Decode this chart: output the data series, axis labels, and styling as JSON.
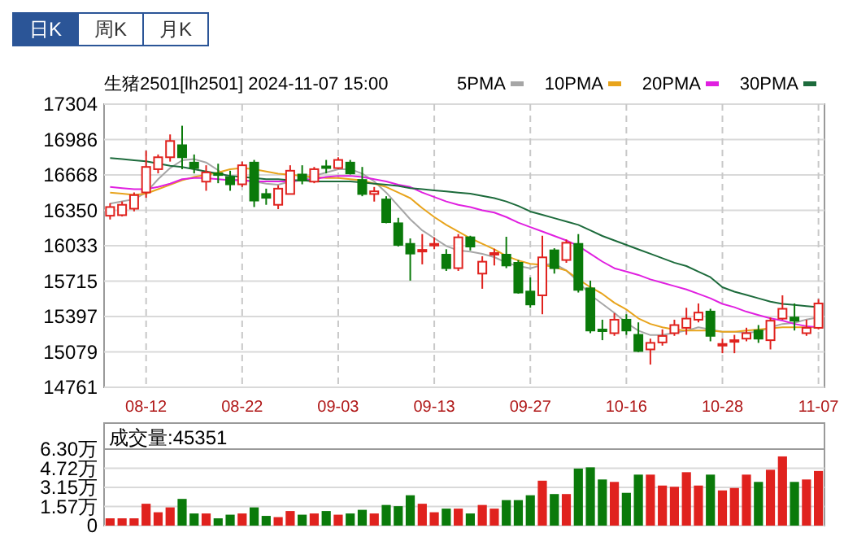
{
  "chart_data": [
    {
      "type": "candlestick",
      "title": "生猪2501[lh2501] 2024-11-07 15:00",
      "annotations": [
        "日K",
        "周K",
        "月K"
      ],
      "categories": [
        null,
        null,
        null,
        "08-12",
        null,
        null,
        null,
        null,
        null,
        null,
        null,
        "08-22",
        null,
        null,
        null,
        null,
        null,
        null,
        null,
        "09-03",
        null,
        null,
        null,
        null,
        null,
        null,
        null,
        "09-13",
        null,
        null,
        null,
        null,
        null,
        null,
        null,
        "09-27",
        null,
        null,
        null,
        null,
        null,
        null,
        null,
        "10-16",
        null,
        null,
        null,
        null,
        null,
        null,
        null,
        "10-28",
        null,
        null,
        null,
        null,
        null,
        null,
        null,
        "11-07"
      ],
      "ohlc": [
        [
          16302,
          16414,
          16268,
          16380
        ],
        [
          16307,
          16430,
          16295,
          16400
        ],
        [
          16365,
          16511,
          16341,
          16487
        ],
        [
          16511,
          16886,
          16463,
          16740
        ],
        [
          16720,
          16852,
          16682,
          16827
        ],
        [
          16827,
          17032,
          16788,
          16973
        ],
        [
          16935,
          17110,
          16720,
          16827
        ],
        [
          16779,
          16852,
          16682,
          16730
        ],
        [
          16608,
          16755,
          16526,
          16691
        ],
        [
          16682,
          16769,
          16594,
          16672
        ],
        [
          16648,
          16706,
          16526,
          16584
        ],
        [
          16584,
          16788,
          16560,
          16755
        ],
        [
          16779,
          16803,
          16380,
          16438
        ],
        [
          16497,
          16545,
          16400,
          16463
        ],
        [
          16400,
          16575,
          16361,
          16545
        ],
        [
          16497,
          16755,
          16497,
          16706
        ],
        [
          16672,
          16755,
          16584,
          16618
        ],
        [
          16608,
          16740,
          16594,
          16720
        ],
        [
          16745,
          16803,
          16682,
          16735
        ],
        [
          16730,
          16827,
          16720,
          16803
        ],
        [
          16779,
          16803,
          16672,
          16682
        ],
        [
          16623,
          16740,
          16477,
          16497
        ],
        [
          16497,
          16560,
          16429,
          16521
        ],
        [
          16448,
          16477,
          16234,
          16244
        ],
        [
          16234,
          16283,
          16025,
          16040
        ],
        [
          16049,
          16098,
          15719,
          15962
        ],
        [
          15985,
          16137,
          15865,
          15995
        ],
        [
          16040,
          16108,
          16001,
          16049
        ],
        [
          15952,
          16001,
          15806,
          15831
        ],
        [
          15831,
          16137,
          15806,
          16108
        ],
        [
          16108,
          16122,
          15990,
          16025
        ],
        [
          15782,
          15938,
          15646,
          15889
        ],
        [
          15957,
          16005,
          15855,
          15967
        ],
        [
          15952,
          16113,
          15831,
          15855
        ],
        [
          15879,
          15904,
          15602,
          15612
        ],
        [
          15621,
          15748,
          15475,
          15505
        ],
        [
          15587,
          16122,
          15417,
          15928
        ],
        [
          15991,
          16010,
          15782,
          15831
        ],
        [
          15904,
          16088,
          15879,
          16059
        ],
        [
          16049,
          16137,
          15612,
          15636
        ],
        [
          15650,
          15719,
          15247,
          15271
        ],
        [
          15280,
          15368,
          15184,
          15271
        ],
        [
          15247,
          15427,
          15223,
          15368
        ],
        [
          15368,
          15417,
          15232,
          15271
        ],
        [
          15232,
          15344,
          15077,
          15087
        ],
        [
          15101,
          15198,
          14965,
          15160
        ],
        [
          15164,
          15281,
          15135,
          15222
        ],
        [
          15247,
          15368,
          15223,
          15320
        ],
        [
          15295,
          15475,
          15232,
          15378
        ],
        [
          15368,
          15514,
          15344,
          15432
        ],
        [
          15441,
          15466,
          15174,
          15223
        ],
        [
          15140,
          15198,
          15067,
          15150
        ],
        [
          15174,
          15232,
          15067,
          15184
        ],
        [
          15198,
          15296,
          15174,
          15247
        ],
        [
          15271,
          15320,
          15160,
          15198
        ],
        [
          15184,
          15388,
          15101,
          15359
        ],
        [
          15378,
          15587,
          15368,
          15466
        ],
        [
          15388,
          15514,
          15271,
          15359
        ],
        [
          15247,
          15368,
          15223,
          15295
        ],
        [
          15295,
          15553,
          15281,
          15514
        ]
      ],
      "colors": [
        "#e0221e",
        "#e0221e",
        "#e0221e",
        "#e0221e",
        "#e0221e",
        "#e0221e",
        "#0a7a0a",
        "#0a7a0a",
        "#e0221e",
        "#0a7a0a",
        "#0a7a0a",
        "#e0221e",
        "#0a7a0a",
        "#0a7a0a",
        "#e0221e",
        "#e0221e",
        "#0a7a0a",
        "#e0221e",
        "#0a7a0a",
        "#e0221e",
        "#0a7a0a",
        "#0a7a0a",
        "#e0221e",
        "#0a7a0a",
        "#0a7a0a",
        "#0a7a0a",
        "#e0221e",
        "#e0221e",
        "#0a7a0a",
        "#e0221e",
        "#0a7a0a",
        "#e0221e",
        "#e0221e",
        "#0a7a0a",
        "#0a7a0a",
        "#0a7a0a",
        "#e0221e",
        "#0a7a0a",
        "#e0221e",
        "#0a7a0a",
        "#0a7a0a",
        "#0a7a0a",
        "#e0221e",
        "#0a7a0a",
        "#0a7a0a",
        "#e0221e",
        "#e0221e",
        "#e0221e",
        "#e0221e",
        "#e0221e",
        "#0a7a0a",
        "#e0221e",
        "#e0221e",
        "#e0221e",
        "#0a7a0a",
        "#e0221e",
        "#e0221e",
        "#0a7a0a",
        "#e0221e",
        "#e0221e"
      ],
      "ylim": [
        14761,
        17304
      ],
      "yticks": [
        14761,
        15079,
        15397,
        15715,
        16033,
        16350,
        16668,
        16986,
        17304
      ],
      "grid": true,
      "legend": "top right",
      "series": [
        {
          "name": "5PMA",
          "type": "line",
          "color": "#a6a6a6",
          "values": [
            16410,
            16430,
            16450,
            16510,
            16630,
            16730,
            16800,
            16810,
            16780,
            16710,
            16630,
            16620,
            16610,
            16590,
            16580,
            16610,
            16620,
            16660,
            16690,
            16720,
            16720,
            16680,
            16610,
            16510,
            16390,
            16270,
            16170,
            16100,
            16030,
            15990,
            15980,
            15960,
            15930,
            15880,
            15850,
            15830,
            15860,
            15870,
            15810,
            15710,
            15590,
            15510,
            15430,
            15340,
            15270,
            15230,
            15230,
            15250,
            15270,
            15300,
            15280,
            15260,
            15260,
            15250,
            15260,
            15300,
            15330,
            15340,
            15370,
            15390
          ]
        },
        {
          "name": "10PMA",
          "type": "line",
          "color": "#e8a41c",
          "values": [
            16510,
            16500,
            16490,
            16500,
            16540,
            16580,
            16620,
            16650,
            16670,
            16690,
            16720,
            16730,
            16720,
            16700,
            16680,
            16670,
            16660,
            16650,
            16640,
            16640,
            16630,
            16620,
            16590,
            16560,
            16510,
            16460,
            16370,
            16290,
            16220,
            16160,
            16100,
            16050,
            16000,
            15940,
            15900,
            15870,
            15860,
            15840,
            15810,
            15730,
            15660,
            15600,
            15520,
            15460,
            15380,
            15330,
            15300,
            15280,
            15270,
            15270,
            15270,
            15260,
            15260,
            15270,
            15280,
            15290,
            15300,
            15300,
            15300,
            15300
          ]
        },
        {
          "name": "20PMA",
          "type": "line",
          "color": "#e020e0",
          "values": [
            16560,
            16550,
            16540,
            16540,
            16560,
            16590,
            16630,
            16640,
            16640,
            16630,
            16620,
            16620,
            16610,
            16610,
            16610,
            16610,
            16620,
            16630,
            16650,
            16660,
            16660,
            16650,
            16630,
            16610,
            16580,
            16560,
            16510,
            16470,
            16430,
            16400,
            16380,
            16350,
            16330,
            16290,
            16240,
            16200,
            16160,
            16120,
            16080,
            16030,
            15960,
            15890,
            15830,
            15800,
            15770,
            15730,
            15700,
            15670,
            15640,
            15600,
            15560,
            15510,
            15480,
            15440,
            15410,
            15380,
            15360,
            15330,
            15310,
            15300
          ]
        },
        {
          "name": "30PMA",
          "type": "line",
          "color": "#1d6b3c",
          "values": [
            16820,
            16810,
            16800,
            16790,
            16770,
            16750,
            16740,
            16720,
            16700,
            16680,
            16660,
            16650,
            16640,
            16630,
            16630,
            16620,
            16620,
            16610,
            16610,
            16610,
            16610,
            16600,
            16590,
            16580,
            16570,
            16550,
            16540,
            16530,
            16520,
            16510,
            16500,
            16480,
            16460,
            16430,
            16390,
            16340,
            16310,
            16280,
            16250,
            16220,
            16170,
            16120,
            16080,
            16040,
            16000,
            15960,
            15920,
            15880,
            15850,
            15800,
            15750,
            15660,
            15620,
            15590,
            15560,
            15530,
            15510,
            15500,
            15490,
            15480
          ]
        }
      ]
    },
    {
      "type": "bar",
      "title": "成交量:45351",
      "tick_labels": "y",
      "grid": "y",
      "categories": [
        null,
        null,
        null,
        null,
        null,
        null,
        null,
        null,
        null,
        null,
        null,
        null,
        null,
        null,
        null,
        null,
        null,
        null,
        null,
        null,
        null,
        null,
        null,
        null,
        null,
        null,
        null,
        null,
        null,
        null,
        null,
        null,
        null,
        null,
        null,
        null,
        null,
        null,
        null,
        null,
        null,
        null,
        null,
        null,
        null,
        null,
        null,
        null,
        null,
        null,
        null,
        null,
        null,
        null,
        null,
        null,
        null,
        null,
        null,
        null
      ],
      "values": [
        0.6,
        0.6,
        0.6,
        1.8,
        1.1,
        1.5,
        2.2,
        1,
        1,
        0.6,
        0.9,
        1,
        1.5,
        0.8,
        0.7,
        1.2,
        0.9,
        1,
        1.2,
        0.9,
        1,
        1.3,
        1,
        1.7,
        1.6,
        2.5,
        1.8,
        1.1,
        1.4,
        1.4,
        1,
        1.7,
        1.4,
        2.1,
        2.1,
        2.5,
        3.7,
        2.6,
        2.6,
        4.7,
        4.8,
        3.8,
        3.6,
        2.7,
        4.2,
        4.2,
        3.3,
        3.2,
        4.4,
        3.3,
        4.2,
        2.9,
        3.1,
        4.2,
        3.6,
        4.6,
        5.7,
        3.6,
        3.8,
        4.5
      ],
      "colors": [
        "#e0221e",
        "#e0221e",
        "#e0221e",
        "#e0221e",
        "#e0221e",
        "#e0221e",
        "#0a7a0a",
        "#0a7a0a",
        "#e0221e",
        "#0a7a0a",
        "#0a7a0a",
        "#e0221e",
        "#0a7a0a",
        "#0a7a0a",
        "#e0221e",
        "#e0221e",
        "#0a7a0a",
        "#e0221e",
        "#0a7a0a",
        "#e0221e",
        "#0a7a0a",
        "#0a7a0a",
        "#e0221e",
        "#0a7a0a",
        "#0a7a0a",
        "#0a7a0a",
        "#e0221e",
        "#e0221e",
        "#0a7a0a",
        "#e0221e",
        "#0a7a0a",
        "#e0221e",
        "#e0221e",
        "#0a7a0a",
        "#0a7a0a",
        "#0a7a0a",
        "#e0221e",
        "#0a7a0a",
        "#e0221e",
        "#0a7a0a",
        "#0a7a0a",
        "#0a7a0a",
        "#e0221e",
        "#0a7a0a",
        "#0a7a0a",
        "#e0221e",
        "#e0221e",
        "#e0221e",
        "#e0221e",
        "#e0221e",
        "#0a7a0a",
        "#e0221e",
        "#e0221e",
        "#e0221e",
        "#0a7a0a",
        "#e0221e",
        "#e0221e",
        "#0a7a0a",
        "#e0221e",
        "#e0221e"
      ],
      "ylim": [
        0,
        6.3
      ],
      "yticks": [
        {
          "value": 0,
          "label": "0"
        },
        {
          "value": 1.57,
          "label": "1.57万"
        },
        {
          "value": 3.15,
          "label": "3.15万"
        },
        {
          "value": 4.72,
          "label": "4.72万"
        },
        {
          "value": 6.3,
          "label": "6.30万"
        }
      ]
    }
  ]
}
